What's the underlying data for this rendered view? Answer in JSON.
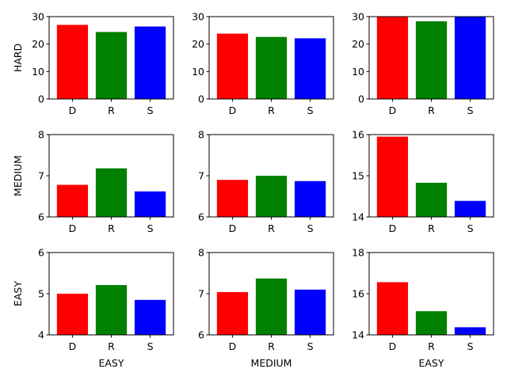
{
  "chart_data": [
    {
      "type": "bar",
      "categories": [
        "D",
        "R",
        "S"
      ],
      "values": [
        27.0,
        24.4,
        26.4
      ],
      "ylim": [
        0,
        30
      ],
      "yticks": [
        0,
        10,
        20,
        30
      ],
      "ylabel": "HARD",
      "xlabel": ""
    },
    {
      "type": "bar",
      "categories": [
        "D",
        "R",
        "S"
      ],
      "values": [
        23.8,
        22.6,
        22.1
      ],
      "ylim": [
        0,
        30
      ],
      "yticks": [
        0,
        10,
        20,
        30
      ],
      "ylabel": "",
      "xlabel": ""
    },
    {
      "type": "bar",
      "categories": [
        "D",
        "R",
        "S"
      ],
      "values": [
        30.5,
        28.3,
        30.5
      ],
      "ylim": [
        0,
        30
      ],
      "yticks": [
        0,
        10,
        20,
        30
      ],
      "ylabel": "",
      "xlabel": ""
    },
    {
      "type": "bar",
      "categories": [
        "D",
        "R",
        "S"
      ],
      "values": [
        6.78,
        7.18,
        6.62
      ],
      "ylim": [
        6,
        8
      ],
      "yticks": [
        6,
        7,
        8
      ],
      "ylabel": "MEDIUM",
      "xlabel": ""
    },
    {
      "type": "bar",
      "categories": [
        "D",
        "R",
        "S"
      ],
      "values": [
        6.9,
        7.0,
        6.87
      ],
      "ylim": [
        6,
        8
      ],
      "yticks": [
        6,
        7,
        8
      ],
      "ylabel": "",
      "xlabel": ""
    },
    {
      "type": "bar",
      "categories": [
        "D",
        "R",
        "S"
      ],
      "values": [
        15.95,
        14.83,
        14.39
      ],
      "ylim": [
        14,
        16
      ],
      "yticks": [
        14,
        15,
        16
      ],
      "ylabel": "",
      "xlabel": ""
    },
    {
      "type": "bar",
      "categories": [
        "D",
        "R",
        "S"
      ],
      "values": [
        5.0,
        5.21,
        4.85
      ],
      "ylim": [
        4,
        6
      ],
      "yticks": [
        4,
        5,
        6
      ],
      "ylabel": "EASY",
      "xlabel": "EASY"
    },
    {
      "type": "bar",
      "categories": [
        "D",
        "R",
        "S"
      ],
      "values": [
        7.04,
        7.37,
        7.1
      ],
      "ylim": [
        6,
        8
      ],
      "yticks": [
        6,
        7,
        8
      ],
      "ylabel": "",
      "xlabel": "MEDIUM"
    },
    {
      "type": "bar",
      "categories": [
        "D",
        "R",
        "S"
      ],
      "values": [
        16.56,
        15.15,
        14.37
      ],
      "ylim": [
        14,
        18
      ],
      "yticks": [
        14,
        16,
        18
      ],
      "ylabel": "",
      "xlabel": "EASY"
    }
  ],
  "colors": {
    "D": "#ff0000",
    "R": "#008000",
    "S": "#0000ff"
  }
}
